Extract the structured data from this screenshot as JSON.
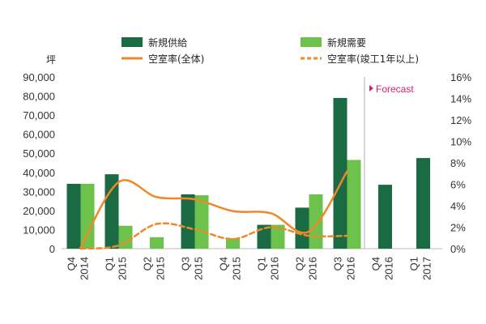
{
  "chart_data": {
    "type": "bar",
    "y_unit_label": "坪",
    "ylim": [
      0,
      90000
    ],
    "y_ticks": [
      "0",
      "10,000",
      "20,000",
      "30,000",
      "40,000",
      "50,000",
      "60,000",
      "70,000",
      "80,000",
      "90,000"
    ],
    "y2lim": [
      0,
      16
    ],
    "y2_ticks": [
      "0%",
      "2%",
      "4%",
      "6%",
      "8%",
      "10%",
      "12%",
      "14%",
      "16%"
    ],
    "categories": [
      {
        "q": "Q4",
        "y": "2014"
      },
      {
        "q": "Q1",
        "y": "2015"
      },
      {
        "q": "Q2",
        "y": "2015"
      },
      {
        "q": "Q3",
        "y": "2015"
      },
      {
        "q": "Q4",
        "y": "2015"
      },
      {
        "q": "Q1",
        "y": "2016"
      },
      {
        "q": "Q2",
        "y": "2016"
      },
      {
        "q": "Q3",
        "y": "2016"
      },
      {
        "q": "Q4",
        "y": "2016"
      },
      {
        "q": "Q1",
        "y": "2017"
      }
    ],
    "series": [
      {
        "name": "新規供給",
        "kind": "bar",
        "color": "#1a6b43",
        "values": [
          34000,
          39000,
          null,
          28500,
          null,
          12500,
          21500,
          79000,
          33500,
          47500
        ]
      },
      {
        "name": "新規需要",
        "kind": "bar",
        "color": "#6cc24a",
        "values": [
          34000,
          12000,
          6000,
          28000,
          5500,
          12500,
          28500,
          46500,
          null,
          null
        ]
      },
      {
        "name": "空室率(全体)",
        "kind": "line",
        "axis": "right",
        "color": "#f0882a",
        "values": [
          0.1,
          6.2,
          4.8,
          4.6,
          3.5,
          3.3,
          1.6,
          7.2,
          null,
          null
        ]
      },
      {
        "name": "空室率(竣工1年以上)",
        "kind": "line",
        "axis": "right",
        "color": "#f0882a",
        "dashed": true,
        "values": [
          0.0,
          0.3,
          2.3,
          1.8,
          0.9,
          2.0,
          1.2,
          1.2,
          null,
          null
        ]
      }
    ],
    "forecast_label": "Forecast",
    "forecast_color": "#d4207a"
  }
}
